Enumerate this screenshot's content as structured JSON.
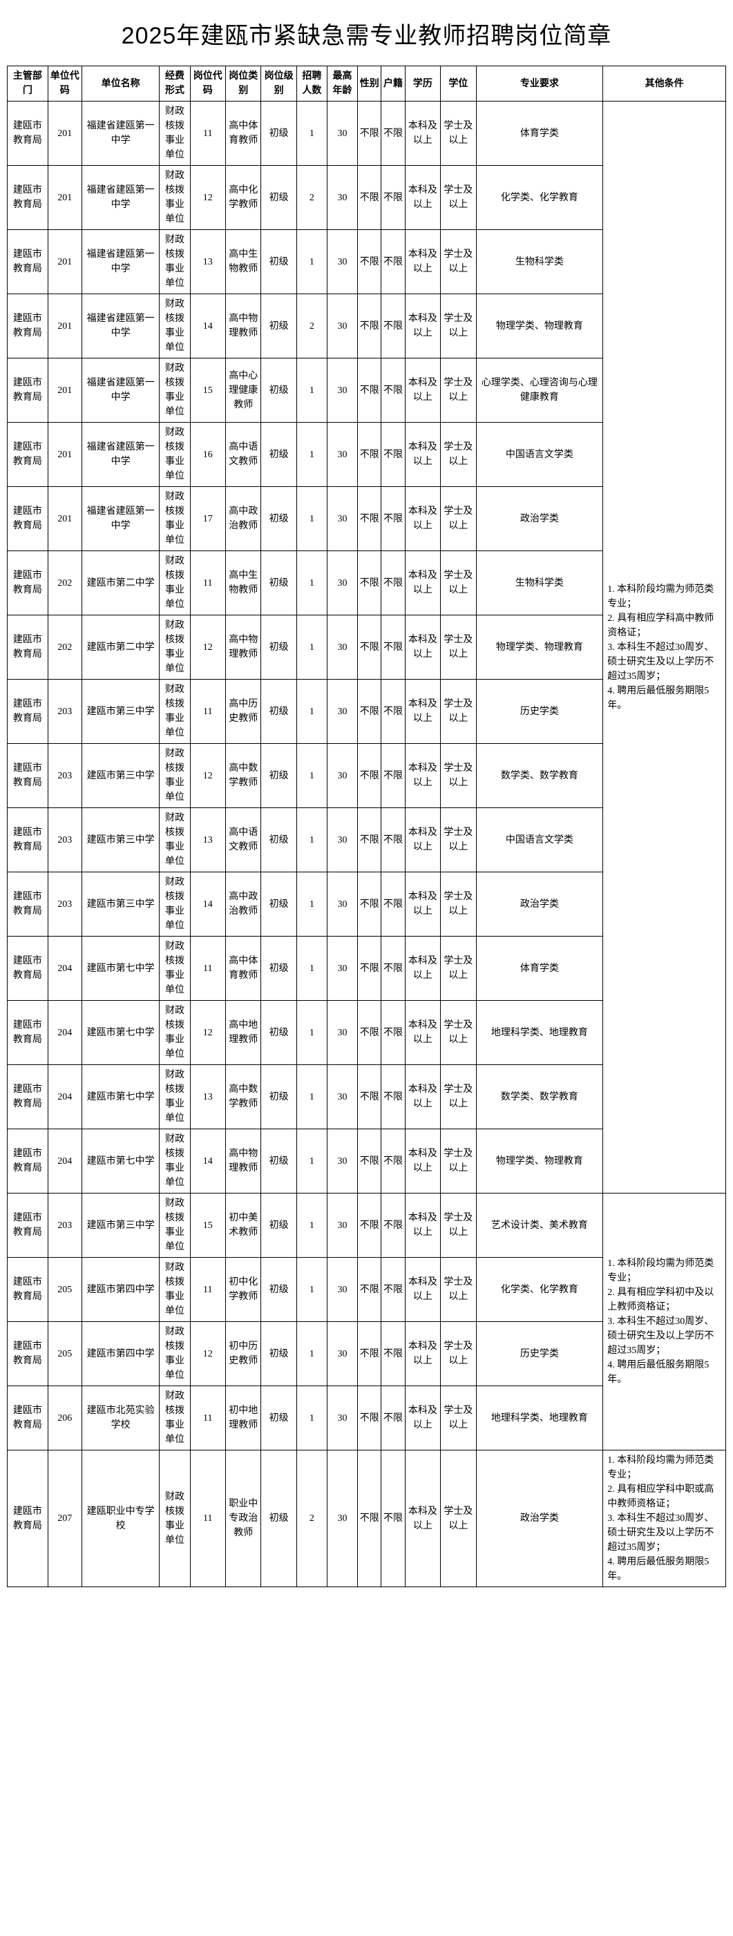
{
  "title": "2025年建瓯市紧缺急需专业教师招聘岗位简章",
  "headers": {
    "dept": "主管部门",
    "ucode": "单位代码",
    "uname": "单位名称",
    "fund": "经费形式",
    "pcode": "岗位代码",
    "ptype": "岗位类别",
    "plvl": "岗位级别",
    "num": "招聘人数",
    "age": "最高年龄",
    "sex": "性别",
    "hukou": "户籍",
    "xueli": "学历",
    "xuewei": "学位",
    "major": "专业要求",
    "other": "其他条件"
  },
  "common": {
    "dept": "建瓯市教育局",
    "fund": "财政核拨事业单位",
    "plvl": "初级",
    "age": "30",
    "sex": "不限",
    "hukou": "不限",
    "xueli": "本科及以上",
    "xuewei": "学士及以上"
  },
  "groups": [
    {
      "other": "1. 本科阶段均需为师范类专业；\n2. 具有相应学科高中教师资格证；\n3. 本科生不超过30周岁、硕士研究生及以上学历不超过35周岁；\n4. 聘用后最低服务期限5年。",
      "rows": [
        {
          "ucode": "201",
          "uname": "福建省建瓯第一中学",
          "pcode": "11",
          "ptype": "高中体育教师",
          "num": "1",
          "major": "体育学类"
        },
        {
          "ucode": "201",
          "uname": "福建省建瓯第一中学",
          "pcode": "12",
          "ptype": "高中化学教师",
          "num": "2",
          "major": "化学类、化学教育"
        },
        {
          "ucode": "201",
          "uname": "福建省建瓯第一中学",
          "pcode": "13",
          "ptype": "高中生物教师",
          "num": "1",
          "major": "生物科学类"
        },
        {
          "ucode": "201",
          "uname": "福建省建瓯第一中学",
          "pcode": "14",
          "ptype": "高中物理教师",
          "num": "2",
          "major": "物理学类、物理教育"
        },
        {
          "ucode": "201",
          "uname": "福建省建瓯第一中学",
          "pcode": "15",
          "ptype": "高中心理健康教师",
          "num": "1",
          "major": "心理学类、心理咨询与心理健康教育"
        },
        {
          "ucode": "201",
          "uname": "福建省建瓯第一中学",
          "pcode": "16",
          "ptype": "高中语文教师",
          "num": "1",
          "major": "中国语言文学类"
        },
        {
          "ucode": "201",
          "uname": "福建省建瓯第一中学",
          "pcode": "17",
          "ptype": "高中政治教师",
          "num": "1",
          "major": "政治学类"
        },
        {
          "ucode": "202",
          "uname": "建瓯市第二中学",
          "pcode": "11",
          "ptype": "高中生物教师",
          "num": "1",
          "major": "生物科学类"
        },
        {
          "ucode": "202",
          "uname": "建瓯市第二中学",
          "pcode": "12",
          "ptype": "高中物理教师",
          "num": "1",
          "major": "物理学类、物理教育"
        },
        {
          "ucode": "203",
          "uname": "建瓯市第三中学",
          "pcode": "11",
          "ptype": "高中历史教师",
          "num": "1",
          "major": "历史学类"
        },
        {
          "ucode": "203",
          "uname": "建瓯市第三中学",
          "pcode": "12",
          "ptype": "高中数学教师",
          "num": "1",
          "major": "数学类、数学教育"
        },
        {
          "ucode": "203",
          "uname": "建瓯市第三中学",
          "pcode": "13",
          "ptype": "高中语文教师",
          "num": "1",
          "major": "中国语言文学类"
        },
        {
          "ucode": "203",
          "uname": "建瓯市第三中学",
          "pcode": "14",
          "ptype": "高中政治教师",
          "num": "1",
          "major": "政治学类"
        },
        {
          "ucode": "204",
          "uname": "建瓯市第七中学",
          "pcode": "11",
          "ptype": "高中体育教师",
          "num": "1",
          "major": "体育学类"
        },
        {
          "ucode": "204",
          "uname": "建瓯市第七中学",
          "pcode": "12",
          "ptype": "高中地理教师",
          "num": "1",
          "major": "地理科学类、地理教育"
        },
        {
          "ucode": "204",
          "uname": "建瓯市第七中学",
          "pcode": "13",
          "ptype": "高中数学教师",
          "num": "1",
          "major": "数学类、数学教育"
        },
        {
          "ucode": "204",
          "uname": "建瓯市第七中学",
          "pcode": "14",
          "ptype": "高中物理教师",
          "num": "1",
          "major": "物理学类、物理教育"
        }
      ]
    },
    {
      "other": "1. 本科阶段均需为师范类专业；\n2. 具有相应学科初中及以上教师资格证；\n3. 本科生不超过30周岁、硕士研究生及以上学历不超过35周岁；\n4. 聘用后最低服务期限5年。",
      "rows": [
        {
          "ucode": "203",
          "uname": "建瓯市第三中学",
          "pcode": "15",
          "ptype": "初中美术教师",
          "num": "1",
          "major": "艺术设计类、美术教育"
        },
        {
          "ucode": "205",
          "uname": "建瓯市第四中学",
          "pcode": "11",
          "ptype": "初中化学教师",
          "num": "1",
          "major": "化学类、化学教育"
        },
        {
          "ucode": "205",
          "uname": "建瓯市第四中学",
          "pcode": "12",
          "ptype": "初中历史教师",
          "num": "1",
          "major": "历史学类"
        },
        {
          "ucode": "206",
          "uname": "建瓯市北苑实验学校",
          "pcode": "11",
          "ptype": "初中地理教师",
          "num": "1",
          "major": "地理科学类、地理教育"
        }
      ]
    },
    {
      "other": "1. 本科阶段均需为师范类专业；\n2. 具有相应学科中职或高中教师资格证；\n3. 本科生不超过30周岁、硕士研究生及以上学历不超过35周岁；\n4. 聘用后最低服务期限5年。",
      "rows": [
        {
          "ucode": "207",
          "uname": "建瓯职业中专学校",
          "pcode": "11",
          "ptype": "职业中专政治教师",
          "num": "2",
          "major": "政治学类"
        }
      ]
    }
  ]
}
